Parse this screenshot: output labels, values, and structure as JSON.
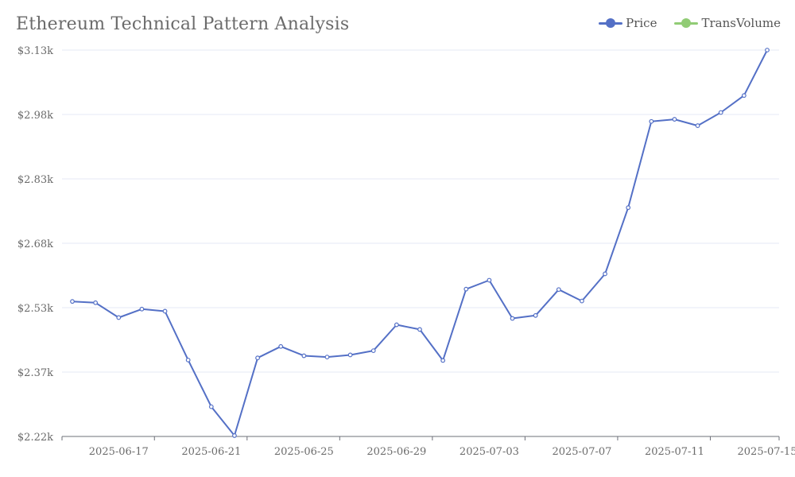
{
  "chart_data": {
    "type": "line",
    "title": "Ethereum Technical Pattern Analysis",
    "legend": [
      "Price",
      "TransVolume"
    ],
    "legend_colors": [
      "#5470c6",
      "#91cc75"
    ],
    "y_ticks": [
      "$2.22k",
      "$2.37k",
      "$2.53k",
      "$2.68k",
      "$2.83k",
      "$2.98k",
      "$3.13k"
    ],
    "ylim": [
      2220,
      3130
    ],
    "x_ticks": [
      "2025-06-17",
      "2025-06-21",
      "2025-06-25",
      "2025-06-29",
      "2025-07-03",
      "2025-07-07",
      "2025-07-11",
      "2025-07-15"
    ],
    "x": [
      "2025-06-15",
      "2025-06-16",
      "2025-06-17",
      "2025-06-18",
      "2025-06-19",
      "2025-06-20",
      "2025-06-21",
      "2025-06-22",
      "2025-06-23",
      "2025-06-24",
      "2025-06-25",
      "2025-06-26",
      "2025-06-27",
      "2025-06-28",
      "2025-06-29",
      "2025-06-30",
      "2025-07-01",
      "2025-07-02",
      "2025-07-03",
      "2025-07-04",
      "2025-07-05",
      "2025-07-06",
      "2025-07-07",
      "2025-07-08",
      "2025-07-09",
      "2025-07-10",
      "2025-07-11",
      "2025-07-12",
      "2025-07-13",
      "2025-07-14",
      "2025-07-15"
    ],
    "series": [
      {
        "name": "Price",
        "color": "#5470c6",
        "values": [
          2538,
          2535,
          2500,
          2520,
          2515,
          2400,
          2290,
          2222,
          2405,
          2432,
          2410,
          2407,
          2412,
          2422,
          2483,
          2472,
          2399,
          2567,
          2588,
          2498,
          2505,
          2566,
          2539,
          2603,
          2759,
          2962,
          2967,
          2952,
          2983,
          3023,
          3130
        ]
      }
    ]
  }
}
